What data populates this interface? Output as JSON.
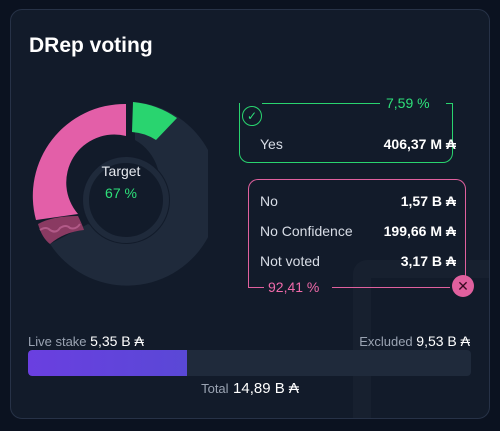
{
  "title": "DRep voting",
  "target": {
    "label": "Target",
    "value": "67 %"
  },
  "yes": {
    "pct": "7,59 %",
    "label": "Yes",
    "value": "406,37 M ₳"
  },
  "no_group": {
    "pct": "92,41 %",
    "rows": [
      {
        "label": "No",
        "value": "1,57 B ₳"
      },
      {
        "label": "No Confidence",
        "value": "199,66 M ₳"
      },
      {
        "label": "Not voted",
        "value": "3,17 B ₳"
      }
    ]
  },
  "stake": {
    "live_label": "Live stake",
    "live_value": "5,35 B ₳",
    "excluded_label": "Excluded",
    "excluded_value": "9,53 B ₳",
    "total_label": "Total",
    "total_value": "14,89 B ₳",
    "live_fraction": 0.36
  },
  "colors": {
    "yes": "#29d46f",
    "no": "#e0609e",
    "no_confidence": "#8a3a62",
    "not_voted": "#1f2a3b",
    "live_bar": "#6a3fe0"
  },
  "icons": {
    "yes_marker": "check-icon",
    "no_marker": "close-icon"
  }
}
